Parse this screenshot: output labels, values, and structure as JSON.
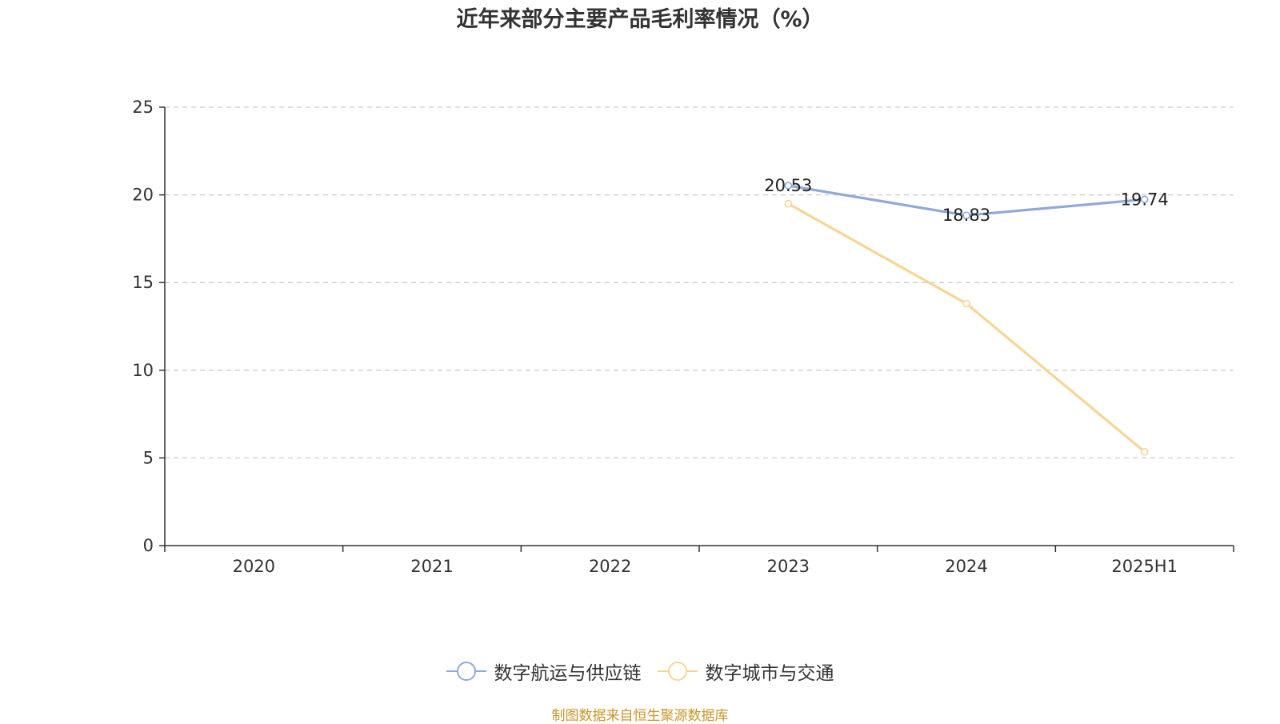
{
  "chart_data": {
    "type": "line",
    "title": "近年来部分主要产品毛利率情况（%）",
    "categories": [
      "2020",
      "2021",
      "2022",
      "2023",
      "2024",
      "2025H1"
    ],
    "ylim": [
      0,
      25
    ],
    "yticks": [
      0,
      5,
      10,
      15,
      20,
      25
    ],
    "grid": true,
    "legend_position": "bottom",
    "series": [
      {
        "name": "数字航运与供应链",
        "color": "#8fa9d8",
        "values": [
          null,
          null,
          null,
          20.53,
          18.83,
          19.74
        ],
        "data_labels": [
          null,
          null,
          null,
          "20.53",
          "18.83",
          "19.74"
        ]
      },
      {
        "name": "数字城市与交通",
        "color": "#f8d592",
        "values": [
          null,
          null,
          null,
          19.5,
          13.8,
          5.35
        ],
        "data_labels": [
          null,
          null,
          null,
          null,
          null,
          null
        ]
      }
    ]
  },
  "source_note": "制图数据来自恒生聚源数据库"
}
